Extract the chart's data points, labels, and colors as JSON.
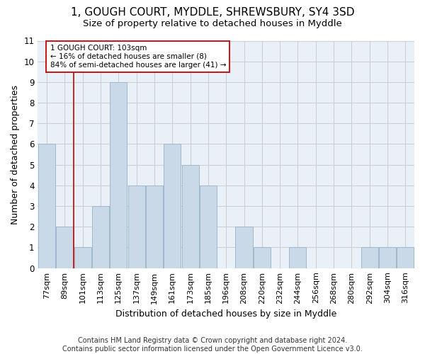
{
  "title1": "1, GOUGH COURT, MYDDLE, SHREWSBURY, SY4 3SD",
  "title2": "Size of property relative to detached houses in Myddle",
  "xlabel": "Distribution of detached houses by size in Myddle",
  "ylabel": "Number of detached properties",
  "categories": [
    "77sqm",
    "89sqm",
    "101sqm",
    "113sqm",
    "125sqm",
    "137sqm",
    "149sqm",
    "161sqm",
    "173sqm",
    "185sqm",
    "196sqm",
    "208sqm",
    "220sqm",
    "232sqm",
    "244sqm",
    "256sqm",
    "268sqm",
    "280sqm",
    "292sqm",
    "304sqm",
    "316sqm"
  ],
  "values": [
    6,
    2,
    1,
    3,
    9,
    4,
    4,
    6,
    5,
    4,
    0,
    2,
    1,
    0,
    1,
    0,
    0,
    0,
    1,
    1,
    1
  ],
  "bar_color": "#c9d9e8",
  "bar_edge_color": "#a0b8cc",
  "vline_x_idx": 1,
  "vline_color": "#cc0000",
  "annotation_text": "1 GOUGH COURT: 103sqm\n← 16% of detached houses are smaller (8)\n84% of semi-detached houses are larger (41) →",
  "annotation_box_color": "#ffffff",
  "annotation_box_edge": "#cc0000",
  "ylim": [
    0,
    11
  ],
  "yticks": [
    0,
    1,
    2,
    3,
    4,
    5,
    6,
    7,
    8,
    9,
    10,
    11
  ],
  "grid_color": "#cccccc",
  "bg_color": "#eaf0f8",
  "footer": "Contains HM Land Registry data © Crown copyright and database right 2024.\nContains public sector information licensed under the Open Government Licence v3.0.",
  "title1_fontsize": 11,
  "title2_fontsize": 9.5,
  "xlabel_fontsize": 9,
  "ylabel_fontsize": 9,
  "footer_fontsize": 7,
  "tick_fontsize": 8,
  "ytick_fontsize": 8.5
}
